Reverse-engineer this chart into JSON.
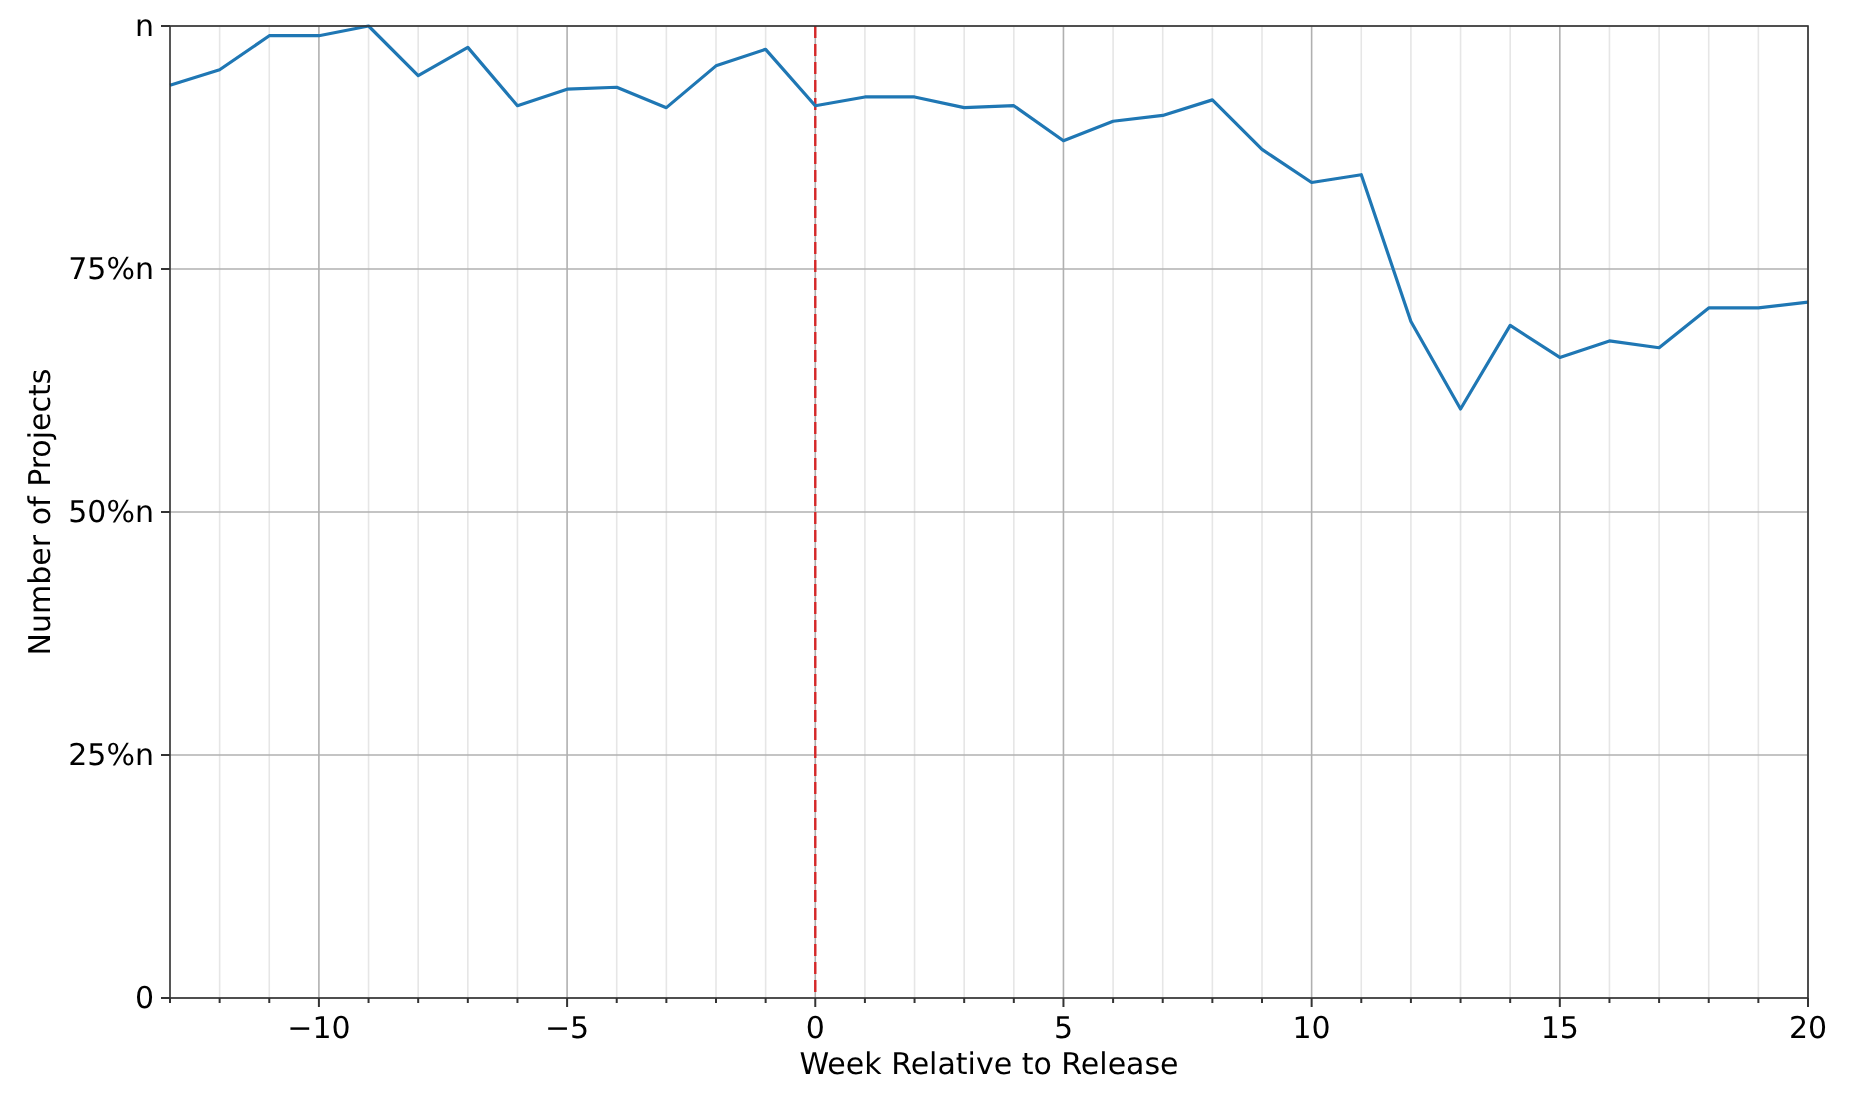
{
  "chart_data": {
    "type": "line",
    "xlabel": "Week Relative to Release",
    "ylabel": "Number of Projects",
    "x": [
      -13,
      -12,
      -11,
      -10,
      -9,
      -8,
      -7,
      -6,
      -5,
      -4,
      -3,
      -2,
      -1,
      0,
      1,
      2,
      3,
      4,
      5,
      6,
      7,
      8,
      9,
      10,
      11,
      12,
      13,
      14,
      15,
      16,
      17,
      18,
      19,
      20
    ],
    "series": [
      {
        "color": "#1f77b4",
        "values": [
          0.939,
          0.955,
          0.99,
          0.99,
          1.0,
          0.949,
          0.978,
          0.918,
          0.935,
          0.937,
          0.916,
          0.959,
          0.976,
          0.918,
          0.927,
          0.927,
          0.916,
          0.918,
          0.882,
          0.902,
          0.908,
          0.924,
          0.873,
          0.839,
          0.847,
          0.696,
          0.606,
          0.692,
          0.659,
          0.676,
          0.669,
          0.71,
          0.71,
          0.716
        ]
      }
    ],
    "xlim": [
      -13,
      20
    ],
    "ylim": [
      0,
      1
    ],
    "xticks": [
      {
        "value": -13,
        "label": null
      },
      {
        "value": -12,
        "label": null
      },
      {
        "value": -11,
        "label": null
      },
      {
        "value": -10,
        "label": "−10"
      },
      {
        "value": -9,
        "label": null
      },
      {
        "value": -8,
        "label": null
      },
      {
        "value": -7,
        "label": null
      },
      {
        "value": -6,
        "label": null
      },
      {
        "value": -5,
        "label": "−5"
      },
      {
        "value": -4,
        "label": null
      },
      {
        "value": -3,
        "label": null
      },
      {
        "value": -2,
        "label": null
      },
      {
        "value": -1,
        "label": null
      },
      0,
      {
        "value": 1,
        "label": null
      },
      {
        "value": 2,
        "label": null
      },
      {
        "value": 3,
        "label": null
      },
      {
        "value": 4,
        "label": null
      },
      5,
      {
        "value": 6,
        "label": null
      },
      {
        "value": 7,
        "label": null
      },
      {
        "value": 8,
        "label": null
      },
      {
        "value": 9,
        "label": null
      },
      10,
      {
        "value": 11,
        "label": null
      },
      {
        "value": 12,
        "label": null
      },
      {
        "value": 13,
        "label": null
      },
      {
        "value": 14,
        "label": null
      },
      15,
      {
        "value": 16,
        "label": null
      },
      {
        "value": 17,
        "label": null
      },
      {
        "value": 18,
        "label": null
      },
      {
        "value": 19,
        "label": null
      },
      20
    ],
    "yticks": [
      0,
      {
        "value": 0.25,
        "label": "25%n"
      },
      {
        "value": 0.5,
        "label": "50%n"
      },
      {
        "value": 0.75,
        "label": "75%n"
      },
      {
        "value": 1,
        "label": "n"
      }
    ],
    "grid": true,
    "marker": "none",
    "line_style": "solid",
    "ref_lines": [
      {
        "axis": "x",
        "value": 0,
        "color": "#d62728",
        "line_style": "dashed"
      }
    ]
  }
}
